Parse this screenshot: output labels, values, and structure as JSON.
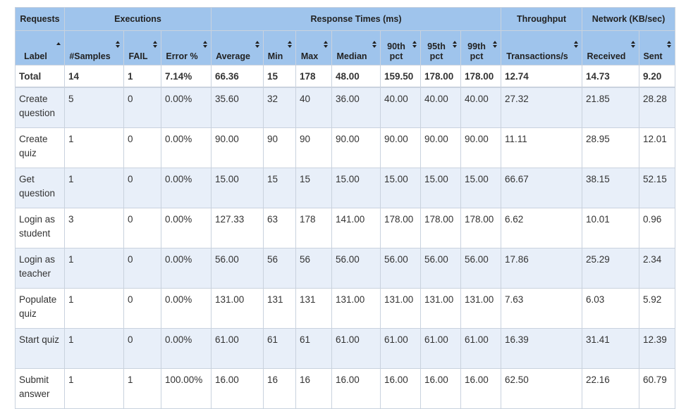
{
  "groups": {
    "requests": "Requests",
    "executions": "Executions",
    "response_times": "Response Times (ms)",
    "throughput": "Throughput",
    "network": "Network (KB/sec)"
  },
  "columns": [
    "Label",
    "#Samples",
    "FAIL",
    "Error %",
    "Average",
    "Min",
    "Max",
    "Median",
    "90th pct",
    "95th pct",
    "99th pct",
    "Transactions/s",
    "Received",
    "Sent"
  ],
  "sort": {
    "column": "Label",
    "direction": "ascending"
  },
  "total": [
    "Total",
    "14",
    "1",
    "7.14%",
    "66.36",
    "15",
    "178",
    "48.00",
    "159.50",
    "178.00",
    "178.00",
    "12.74",
    "14.73",
    "9.20"
  ],
  "rows": [
    [
      "Create question",
      "5",
      "0",
      "0.00%",
      "35.60",
      "32",
      "40",
      "36.00",
      "40.00",
      "40.00",
      "40.00",
      "27.32",
      "21.85",
      "28.28"
    ],
    [
      "Create quiz",
      "1",
      "0",
      "0.00%",
      "90.00",
      "90",
      "90",
      "90.00",
      "90.00",
      "90.00",
      "90.00",
      "11.11",
      "28.95",
      "12.01"
    ],
    [
      "Get question",
      "1",
      "0",
      "0.00%",
      "15.00",
      "15",
      "15",
      "15.00",
      "15.00",
      "15.00",
      "15.00",
      "66.67",
      "38.15",
      "52.15"
    ],
    [
      "Login as student",
      "3",
      "0",
      "0.00%",
      "127.33",
      "63",
      "178",
      "141.00",
      "178.00",
      "178.00",
      "178.00",
      "6.62",
      "10.01",
      "0.96"
    ],
    [
      "Login as teacher",
      "1",
      "0",
      "0.00%",
      "56.00",
      "56",
      "56",
      "56.00",
      "56.00",
      "56.00",
      "56.00",
      "17.86",
      "25.29",
      "2.34"
    ],
    [
      "Populate quiz",
      "1",
      "0",
      "0.00%",
      "131.00",
      "131",
      "131",
      "131.00",
      "131.00",
      "131.00",
      "131.00",
      "7.63",
      "6.03",
      "5.92"
    ],
    [
      "Start quiz",
      "1",
      "0",
      "0.00%",
      "61.00",
      "61",
      "61",
      "61.00",
      "61.00",
      "61.00",
      "61.00",
      "16.39",
      "31.41",
      "12.39"
    ],
    [
      "Submit answer",
      "1",
      "1",
      "100.00%",
      "16.00",
      "16",
      "16",
      "16.00",
      "16.00",
      "16.00",
      "16.00",
      "62.50",
      "22.16",
      "60.79"
    ]
  ],
  "colors": {
    "header_bg": "#9fc4ec",
    "odd_row_bg": "#e8eff9",
    "border": "#c9d2de"
  }
}
